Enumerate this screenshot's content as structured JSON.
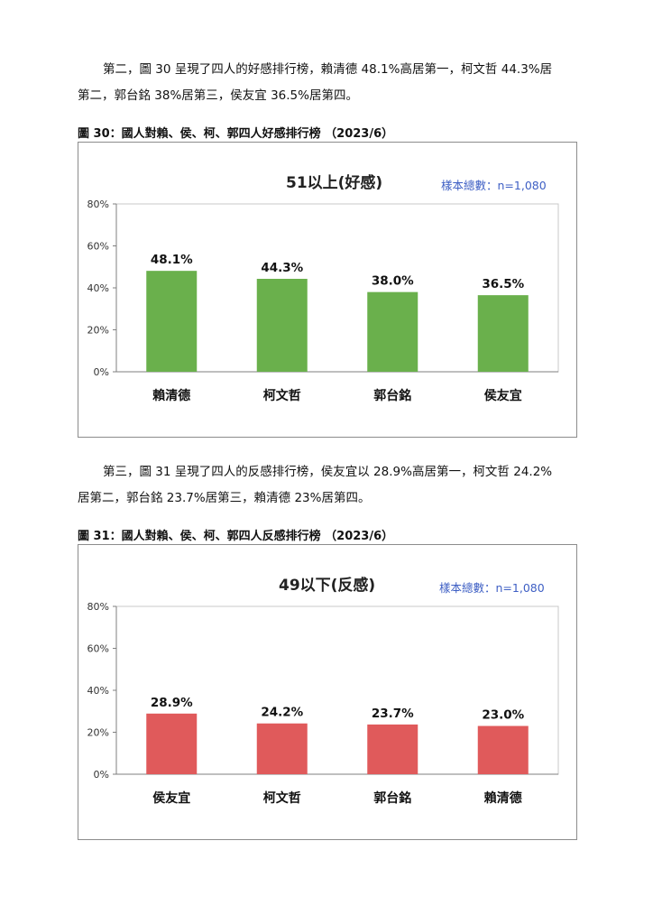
{
  "para1": {
    "line1": "第二，圖 30 呈現了四人的好感排行榜，賴清德 48.1%高居第一，柯文哲 44.3%居",
    "line2": "第二，郭台銘 38%居第三，侯友宜 36.5%居第四。"
  },
  "caption1": "圖 30：國人對賴、侯、柯、郭四人好感排行榜 （2023/6）",
  "para2": {
    "line1": "第三，圖 31 呈現了四人的反感排行榜，侯友宜以 28.9%高居第一，柯文哲 24.2%",
    "line2": "居第二，郭台銘 23.7%居第三，賴清德 23%居第四。"
  },
  "caption2": "圖 31：國人對賴、侯、柯、郭四人反感排行榜 （2023/6）",
  "colors": {
    "favorable": "#6ab04c",
    "unfavorable": "#e05a5b",
    "note": "#3e5fc4"
  },
  "chart_data": [
    {
      "type": "bar",
      "title": "51以上(好感)",
      "note": "樣本總數：n=1,080",
      "categories": [
        "賴清德",
        "柯文哲",
        "郭台銘",
        "侯友宜"
      ],
      "values": [
        48.1,
        44.3,
        38.0,
        36.5
      ],
      "labels": [
        "48.1%",
        "44.3%",
        "38.0%",
        "36.5%"
      ],
      "yticks": [
        "0%",
        "20%",
        "40%",
        "60%",
        "80%"
      ],
      "ylim": [
        0,
        80
      ],
      "grid": false
    },
    {
      "type": "bar",
      "title": "49以下(反感)",
      "note": "樣本總數：n=1,080",
      "categories": [
        "侯友宜",
        "柯文哲",
        "郭台銘",
        "賴清德"
      ],
      "values": [
        28.9,
        24.2,
        23.7,
        23.0
      ],
      "labels": [
        "28.9%",
        "24.2%",
        "23.7%",
        "23.0%"
      ],
      "yticks": [
        "0%",
        "20%",
        "40%",
        "60%",
        "80%"
      ],
      "ylim": [
        0,
        80
      ],
      "grid": false
    }
  ]
}
